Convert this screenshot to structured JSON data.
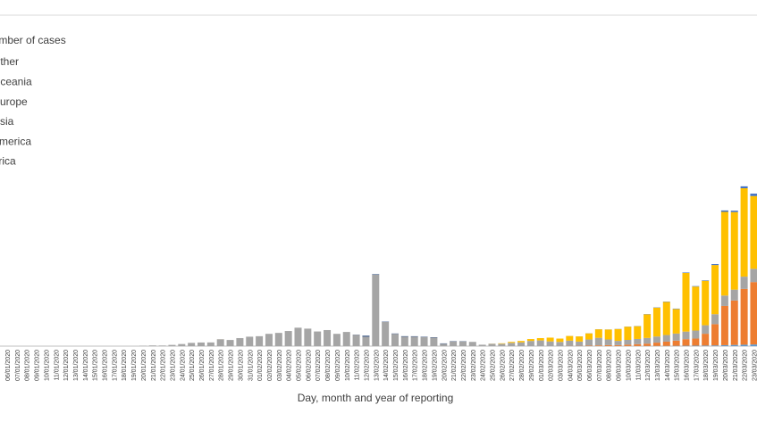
{
  "chart_data": {
    "type": "stacked_bar",
    "legend_title": "Number of cases",
    "x_label": "Day, month and year of reporting",
    "ylim": [
      0,
      70000
    ],
    "categories": [
      "06/01/2020",
      "07/01/2020",
      "08/01/2020",
      "09/01/2020",
      "10/01/2020",
      "11/01/2020",
      "12/01/2020",
      "13/01/2020",
      "14/01/2020",
      "15/01/2020",
      "16/01/2020",
      "17/01/2020",
      "18/01/2020",
      "19/01/2020",
      "20/01/2020",
      "21/01/2020",
      "22/01/2020",
      "23/01/2020",
      "24/01/2020",
      "25/01/2020",
      "26/01/2020",
      "27/01/2020",
      "28/01/2020",
      "29/01/2020",
      "30/01/2020",
      "31/01/2020",
      "01/02/2020",
      "02/02/2020",
      "03/02/2020",
      "04/02/2020",
      "05/02/2020",
      "06/02/2020",
      "07/02/2020",
      "08/02/2020",
      "09/02/2020",
      "10/02/2020",
      "11/02/2020",
      "12/02/2020",
      "13/02/2020",
      "14/02/2020",
      "15/02/2020",
      "16/02/2020",
      "17/02/2020",
      "18/02/2020",
      "19/02/2020",
      "20/02/2020",
      "21/02/2020",
      "22/02/2020",
      "23/02/2020",
      "24/02/2020",
      "25/02/2020",
      "26/02/2020",
      "27/02/2020",
      "28/02/2020",
      "29/02/2020",
      "01/03/2020",
      "02/03/2020",
      "03/03/2020",
      "04/03/2020",
      "05/03/2020",
      "06/03/2020",
      "07/03/2020",
      "08/03/2020",
      "09/03/2020",
      "10/03/2020",
      "11/03/2020",
      "12/03/2020",
      "13/03/2020",
      "14/03/2020",
      "15/03/2020",
      "16/03/2020",
      "17/03/2020",
      "18/03/2020",
      "19/03/2020",
      "20/03/2020",
      "21/03/2020",
      "22/03/2020",
      "23/03/2020"
    ],
    "series": [
      {
        "name": "Africa",
        "color": "#5b9bd5",
        "values": [
          0,
          0,
          0,
          0,
          0,
          0,
          0,
          0,
          0,
          0,
          0,
          0,
          0,
          0,
          0,
          0,
          0,
          0,
          0,
          0,
          0,
          0,
          0,
          0,
          0,
          0,
          0,
          0,
          0,
          0,
          0,
          0,
          0,
          0,
          0,
          0,
          0,
          0,
          0,
          0,
          0,
          0,
          0,
          0,
          0,
          0,
          0,
          0,
          0,
          0,
          0,
          0,
          0,
          0,
          0,
          0,
          0,
          0,
          0,
          0,
          5,
          10,
          10,
          15,
          20,
          20,
          30,
          40,
          50,
          60,
          80,
          100,
          120,
          150,
          200,
          250,
          300,
          350
        ]
      },
      {
        "name": "America",
        "color": "#ed7d31",
        "values": [
          0,
          0,
          0,
          0,
          0,
          0,
          0,
          0,
          0,
          0,
          0,
          0,
          0,
          0,
          0,
          0,
          0,
          0,
          0,
          0,
          0,
          0,
          0,
          0,
          0,
          0,
          0,
          0,
          0,
          0,
          0,
          0,
          0,
          0,
          0,
          0,
          0,
          0,
          0,
          0,
          0,
          0,
          0,
          0,
          0,
          0,
          0,
          0,
          0,
          0,
          0,
          0,
          0,
          0,
          0,
          0,
          0,
          0,
          50,
          60,
          100,
          150,
          200,
          200,
          300,
          400,
          500,
          700,
          900,
          1100,
          1400,
          1500,
          2500,
          4500,
          8300,
          9400,
          11800,
          13200
        ]
      },
      {
        "name": "Asia",
        "color": "#a5a5a5",
        "values": [
          0,
          0,
          0,
          0,
          0,
          0,
          0,
          0,
          0,
          0,
          0,
          0,
          0,
          0,
          77,
          149,
          131,
          259,
          444,
          688,
          769,
          785,
          1459,
          1300,
          1700,
          2000,
          2100,
          2600,
          2800,
          3200,
          3900,
          3700,
          3100,
          3400,
          2600,
          3000,
          2400,
          2000,
          15100,
          5100,
          2600,
          2000,
          2000,
          1900,
          1800,
          500,
          1000,
          1000,
          900,
          300,
          500,
          500,
          700,
          800,
          1100,
          1200,
          1000,
          900,
          1100,
          900,
          1300,
          1600,
          1200,
          900,
          1000,
          1100,
          1200,
          1300,
          1400,
          1500,
          1600,
          1700,
          1800,
          2100,
          2200,
          2300,
          2600,
          2800
        ]
      },
      {
        "name": "Europe",
        "color": "#ffc000",
        "values": [
          0,
          0,
          0,
          0,
          0,
          0,
          0,
          0,
          0,
          0,
          0,
          0,
          0,
          0,
          0,
          0,
          0,
          0,
          0,
          0,
          0,
          0,
          5,
          0,
          0,
          0,
          0,
          0,
          0,
          0,
          0,
          0,
          0,
          0,
          0,
          0,
          0,
          0,
          0,
          0,
          0,
          0,
          0,
          0,
          0,
          0,
          0,
          0,
          0,
          0,
          20,
          100,
          200,
          300,
          400,
          500,
          800,
          700,
          1000,
          1100,
          1300,
          1800,
          2100,
          2500,
          2800,
          2700,
          5000,
          6100,
          7000,
          5200,
          12400,
          9300,
          9400,
          10400,
          17700,
          16400,
          18700,
          15400
        ]
      },
      {
        "name": "Oceania",
        "color": "#4472c4",
        "values": [
          0,
          0,
          0,
          0,
          0,
          0,
          0,
          0,
          0,
          0,
          0,
          0,
          0,
          0,
          0,
          0,
          0,
          0,
          0,
          0,
          0,
          0,
          0,
          0,
          0,
          0,
          0,
          0,
          0,
          0,
          0,
          0,
          0,
          0,
          0,
          0,
          0,
          0,
          0,
          0,
          0,
          0,
          0,
          0,
          0,
          0,
          0,
          0,
          0,
          0,
          0,
          0,
          0,
          0,
          0,
          0,
          0,
          0,
          10,
          10,
          20,
          20,
          20,
          30,
          30,
          40,
          50,
          60,
          70,
          80,
          100,
          100,
          100,
          200,
          300,
          300,
          400,
          500
        ]
      },
      {
        "name": "Other",
        "color": "#264478",
        "values": [
          0,
          0,
          0,
          0,
          0,
          0,
          0,
          0,
          0,
          0,
          0,
          0,
          0,
          0,
          0,
          0,
          0,
          0,
          0,
          0,
          0,
          0,
          0,
          0,
          0,
          0,
          0,
          0,
          0,
          0,
          0,
          0,
          0,
          0,
          0,
          0,
          40,
          200,
          100,
          70,
          70,
          100,
          90,
          80,
          80,
          80,
          60,
          50,
          0,
          0,
          0,
          0,
          0,
          0,
          0,
          0,
          0,
          0,
          0,
          0,
          0,
          0,
          0,
          0,
          0,
          0,
          0,
          0,
          0,
          0,
          0,
          0,
          0,
          0,
          0,
          0,
          0,
          0
        ]
      }
    ]
  }
}
